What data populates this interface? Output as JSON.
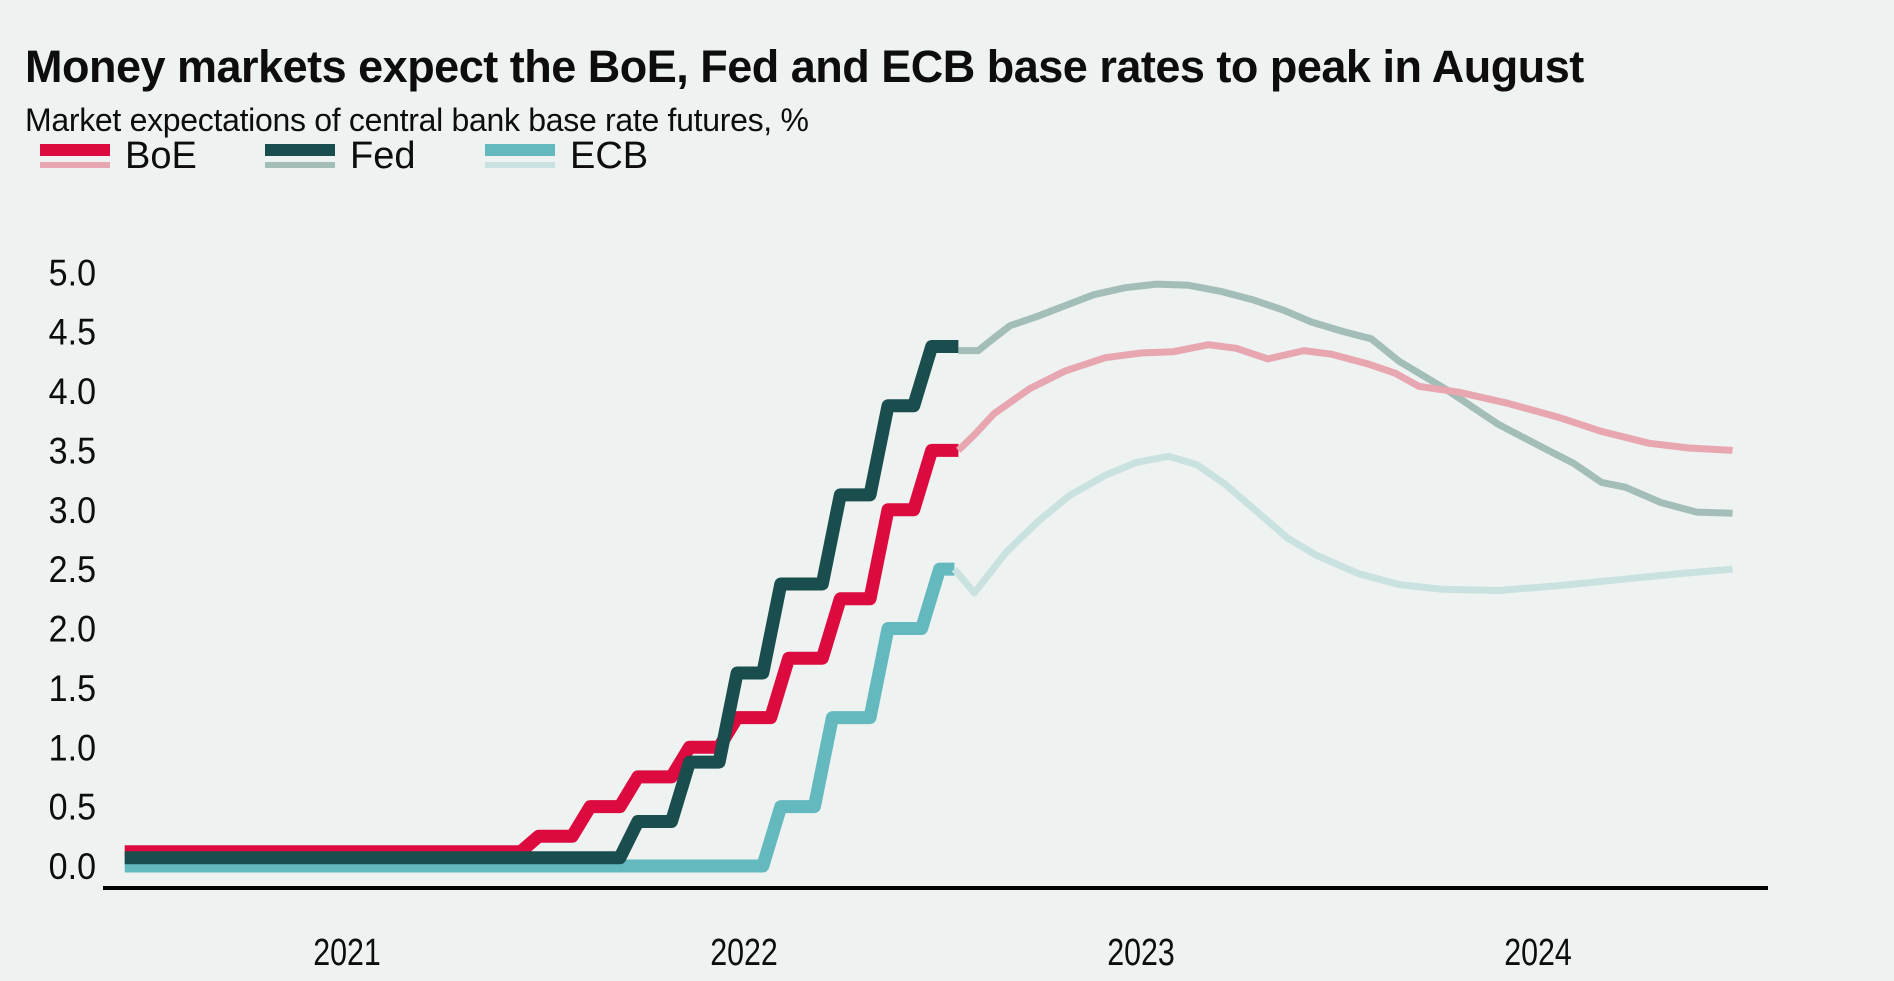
{
  "header": {
    "title": "Money markets expect the BoE, Fed and ECB base rates to peak in August",
    "subtitle": "Market expectations of central bank base rate futures, %"
  },
  "legend": {
    "position": "top-left",
    "items": [
      {
        "label": "BoE",
        "solid_color": "#dc0a3e",
        "future_color": "#e7a6b0"
      },
      {
        "label": "Fed",
        "solid_color": "#1a4d4d",
        "future_color": "#a3bdb9"
      },
      {
        "label": "ECB",
        "solid_color": "#64b9be",
        "future_color": "#c9e2e0"
      }
    ]
  },
  "colors": {
    "background": "#eef2f0",
    "axis_line": "#000000",
    "text": "#0d0d0d"
  },
  "chart_data": {
    "type": "line",
    "title": "Money markets expect the BoE, Fed and ECB base rates to peak in August",
    "subtitle": "Market expectations of central bank base rate futures, %",
    "unit": "%",
    "grid": false,
    "x_axis": {
      "range_decimal_years": [
        2020.89,
        2025.08
      ],
      "ticks": [
        {
          "label": "2021",
          "t": 2021.5
        },
        {
          "label": "2022",
          "t": 2022.5
        },
        {
          "label": "2023",
          "t": 2023.5
        },
        {
          "label": "2024",
          "t": 2024.5
        }
      ]
    },
    "y_axis": {
      "range": [
        0.0,
        5.0
      ],
      "tick_values": [
        0.0,
        0.5,
        1.0,
        1.5,
        2.0,
        2.5,
        3.0,
        3.5,
        4.0,
        4.5,
        5.0
      ],
      "tick_labels": [
        "0.0",
        "0.5",
        "1.0",
        "1.5",
        "2.0",
        "2.5",
        "3.0",
        "3.5",
        "4.0",
        "4.5",
        "5.0"
      ]
    },
    "series": [
      {
        "id": "ecb-historical",
        "bank": "ECB",
        "kind": "historical rate",
        "style": "step",
        "color": "#64b9be",
        "width": 13,
        "end_t": 2023.03,
        "points": [
          [
            2020.94,
            0.0
          ],
          [
            2022.57,
            0.5
          ],
          [
            2022.7,
            1.25
          ],
          [
            2022.84,
            2.0
          ],
          [
            2022.97,
            2.5
          ]
        ]
      },
      {
        "id": "boe-historical",
        "bank": "BoE",
        "kind": "historical rate",
        "style": "step",
        "color": "#dc0a3e",
        "width": 13,
        "end_t": 2023.04,
        "points": [
          [
            2020.94,
            0.12
          ],
          [
            2021.96,
            0.25
          ],
          [
            2022.09,
            0.5
          ],
          [
            2022.21,
            0.75
          ],
          [
            2022.34,
            1.0
          ],
          [
            2022.46,
            1.25
          ],
          [
            2022.59,
            1.75
          ],
          [
            2022.72,
            2.25
          ],
          [
            2022.84,
            3.0
          ],
          [
            2022.95,
            3.5
          ]
        ]
      },
      {
        "id": "fed-historical",
        "bank": "Fed",
        "kind": "historical rate",
        "style": "step",
        "color": "#1a4d4d",
        "width": 13,
        "end_t": 2023.04,
        "points": [
          [
            2020.94,
            0.07
          ],
          [
            2022.21,
            0.375
          ],
          [
            2022.34,
            0.875
          ],
          [
            2022.46,
            1.625
          ],
          [
            2022.57,
            2.375
          ],
          [
            2022.72,
            3.125
          ],
          [
            2022.84,
            3.875
          ],
          [
            2022.95,
            4.375
          ]
        ]
      },
      {
        "id": "ecb-futures",
        "bank": "ECB",
        "kind": "futures",
        "style": "line",
        "color": "#c9e2e0",
        "width": 7,
        "points": [
          [
            2023.03,
            2.5
          ],
          [
            2023.08,
            2.3
          ],
          [
            2023.16,
            2.64
          ],
          [
            2023.24,
            2.9
          ],
          [
            2023.32,
            3.12
          ],
          [
            2023.41,
            3.29
          ],
          [
            2023.49,
            3.4
          ],
          [
            2023.57,
            3.45
          ],
          [
            2023.64,
            3.38
          ],
          [
            2023.71,
            3.22
          ],
          [
            2023.79,
            2.99
          ],
          [
            2023.87,
            2.76
          ],
          [
            2023.94,
            2.62
          ],
          [
            2024.05,
            2.46
          ],
          [
            2024.15,
            2.37
          ],
          [
            2024.26,
            2.33
          ],
          [
            2024.4,
            2.32
          ],
          [
            2024.55,
            2.36
          ],
          [
            2024.7,
            2.41
          ],
          [
            2024.85,
            2.46
          ],
          [
            2024.99,
            2.5
          ]
        ]
      },
      {
        "id": "fed-futures",
        "bank": "Fed",
        "kind": "futures",
        "style": "line",
        "color": "#a3bdb9",
        "width": 7,
        "points": [
          [
            2023.04,
            4.34
          ],
          [
            2023.09,
            4.34
          ],
          [
            2023.12,
            4.42
          ],
          [
            2023.17,
            4.55
          ],
          [
            2023.24,
            4.63
          ],
          [
            2023.31,
            4.72
          ],
          [
            2023.38,
            4.81
          ],
          [
            2023.46,
            4.87
          ],
          [
            2023.54,
            4.9
          ],
          [
            2023.62,
            4.89
          ],
          [
            2023.7,
            4.84
          ],
          [
            2023.78,
            4.77
          ],
          [
            2023.86,
            4.68
          ],
          [
            2023.93,
            4.58
          ],
          [
            2024.01,
            4.5
          ],
          [
            2024.08,
            4.44
          ],
          [
            2024.15,
            4.25
          ],
          [
            2024.27,
            4.01
          ],
          [
            2024.4,
            3.72
          ],
          [
            2024.52,
            3.51
          ],
          [
            2024.59,
            3.39
          ],
          [
            2024.66,
            3.23
          ],
          [
            2024.72,
            3.19
          ],
          [
            2024.81,
            3.06
          ],
          [
            2024.9,
            2.98
          ],
          [
            2024.99,
            2.97
          ]
        ]
      },
      {
        "id": "boe-futures",
        "bank": "BoE",
        "kind": "futures",
        "style": "line",
        "color": "#e7a6b0",
        "width": 7,
        "points": [
          [
            2023.04,
            3.5
          ],
          [
            2023.08,
            3.63
          ],
          [
            2023.13,
            3.81
          ],
          [
            2023.22,
            4.02
          ],
          [
            2023.31,
            4.17
          ],
          [
            2023.41,
            4.28
          ],
          [
            2023.5,
            4.32
          ],
          [
            2023.58,
            4.33
          ],
          [
            2023.67,
            4.39
          ],
          [
            2023.74,
            4.36
          ],
          [
            2023.82,
            4.27
          ],
          [
            2023.91,
            4.34
          ],
          [
            2023.98,
            4.31
          ],
          [
            2024.07,
            4.23
          ],
          [
            2024.14,
            4.15
          ],
          [
            2024.2,
            4.04
          ],
          [
            2024.3,
            3.99
          ],
          [
            2024.42,
            3.9
          ],
          [
            2024.55,
            3.78
          ],
          [
            2024.66,
            3.66
          ],
          [
            2024.78,
            3.56
          ],
          [
            2024.88,
            3.52
          ],
          [
            2024.99,
            3.5
          ]
        ]
      }
    ]
  }
}
